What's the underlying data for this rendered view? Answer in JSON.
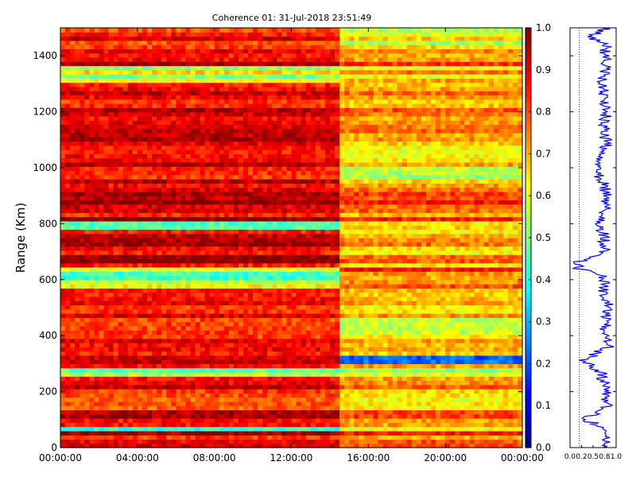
{
  "chart_data": [
    {
      "type": "heatmap",
      "title": "Coherence 01: 31-Jul-2018 23:51:49",
      "xlabel": "",
      "ylabel": "Range (Km)",
      "x_tick_labels": [
        "00:00:00",
        "04:00:00",
        "08:00:00",
        "12:00:00",
        "16:00:00",
        "20:00:00",
        "00:00:00"
      ],
      "xlim_hours": [
        0,
        24
      ],
      "y_ticks": [
        0,
        200,
        400,
        600,
        800,
        1000,
        1200,
        1400
      ],
      "ylim": [
        0,
        1500
      ],
      "colorbar": {
        "colormap": "jet",
        "range": [
          0.0,
          1.0
        ],
        "ticks": [
          "0.0",
          "0.1",
          "0.2",
          "0.3",
          "0.4",
          "0.5",
          "0.6",
          "0.7",
          "0.8",
          "0.9",
          "1.0"
        ]
      },
      "regime_change_hour": 14.4,
      "range_bands": [
        {
          "y": [
            0,
            55
          ],
          "before": 0.88,
          "after": 0.78
        },
        {
          "y": [
            55,
            80
          ],
          "before": 0.5,
          "after": 0.7
        },
        {
          "y": [
            80,
            130
          ],
          "before": 0.95,
          "after": 0.8
        },
        {
          "y": [
            130,
            190
          ],
          "before": 0.85,
          "after": 0.7
        },
        {
          "y": [
            190,
            260
          ],
          "before": 0.9,
          "after": 0.75
        },
        {
          "y": [
            260,
            280
          ],
          "before": 0.55,
          "after": 0.6
        },
        {
          "y": [
            280,
            305
          ],
          "before": 0.88,
          "after": 0.72
        },
        {
          "y": [
            305,
            325
          ],
          "before": 0.85,
          "after": 0.15
        },
        {
          "y": [
            325,
            400
          ],
          "before": 0.9,
          "after": 0.72
        },
        {
          "y": [
            400,
            470
          ],
          "before": 0.8,
          "after": 0.55
        },
        {
          "y": [
            470,
            570
          ],
          "before": 0.9,
          "after": 0.72
        },
        {
          "y": [
            570,
            600
          ],
          "before": 0.55,
          "after": 0.72
        },
        {
          "y": [
            600,
            650
          ],
          "before": 0.5,
          "after": 0.78
        },
        {
          "y": [
            650,
            780
          ],
          "before": 0.92,
          "after": 0.7
        },
        {
          "y": [
            780,
            810
          ],
          "before": 0.4,
          "after": 0.6
        },
        {
          "y": [
            810,
            950
          ],
          "before": 0.92,
          "after": 0.78
        },
        {
          "y": [
            950,
            1000
          ],
          "before": 0.88,
          "after": 0.6
        },
        {
          "y": [
            1000,
            1130
          ],
          "before": 0.92,
          "after": 0.68
        },
        {
          "y": [
            1130,
            1300
          ],
          "before": 0.88,
          "after": 0.72
        },
        {
          "y": [
            1300,
            1360
          ],
          "before": 0.6,
          "after": 0.7
        },
        {
          "y": [
            1360,
            1440
          ],
          "before": 0.9,
          "after": 0.75
        },
        {
          "y": [
            1440,
            1500
          ],
          "before": 0.85,
          "after": 0.6
        }
      ]
    },
    {
      "type": "line",
      "xlabel": "",
      "ylabel": "",
      "x_tick_labels": [
        "0.0",
        "0.2",
        "0.5",
        "0.8",
        "1.0"
      ],
      "xlim": [
        0,
        1
      ],
      "ylim": [
        0,
        1500
      ],
      "reference_line_x": 0.2,
      "line_color": "#0000ff",
      "profile": [
        {
          "y": 0,
          "x": 0.72
        },
        {
          "y": 40,
          "x": 0.78
        },
        {
          "y": 80,
          "x": 0.6
        },
        {
          "y": 100,
          "x": 0.3
        },
        {
          "y": 140,
          "x": 0.8
        },
        {
          "y": 200,
          "x": 0.75
        },
        {
          "y": 260,
          "x": 0.7
        },
        {
          "y": 310,
          "x": 0.3
        },
        {
          "y": 360,
          "x": 0.82
        },
        {
          "y": 420,
          "x": 0.74
        },
        {
          "y": 460,
          "x": 0.78
        },
        {
          "y": 520,
          "x": 0.8
        },
        {
          "y": 560,
          "x": 0.7
        },
        {
          "y": 610,
          "x": 0.76
        },
        {
          "y": 640,
          "x": 0.2
        },
        {
          "y": 660,
          "x": 0.1
        },
        {
          "y": 700,
          "x": 0.78
        },
        {
          "y": 760,
          "x": 0.72
        },
        {
          "y": 800,
          "x": 0.65
        },
        {
          "y": 860,
          "x": 0.8
        },
        {
          "y": 940,
          "x": 0.74
        },
        {
          "y": 1000,
          "x": 0.55
        },
        {
          "y": 1060,
          "x": 0.78
        },
        {
          "y": 1130,
          "x": 0.75
        },
        {
          "y": 1200,
          "x": 0.8
        },
        {
          "y": 1270,
          "x": 0.72
        },
        {
          "y": 1330,
          "x": 0.74
        },
        {
          "y": 1380,
          "x": 0.8
        },
        {
          "y": 1440,
          "x": 0.76
        },
        {
          "y": 1470,
          "x": 0.45
        },
        {
          "y": 1500,
          "x": 0.8
        }
      ]
    }
  ]
}
